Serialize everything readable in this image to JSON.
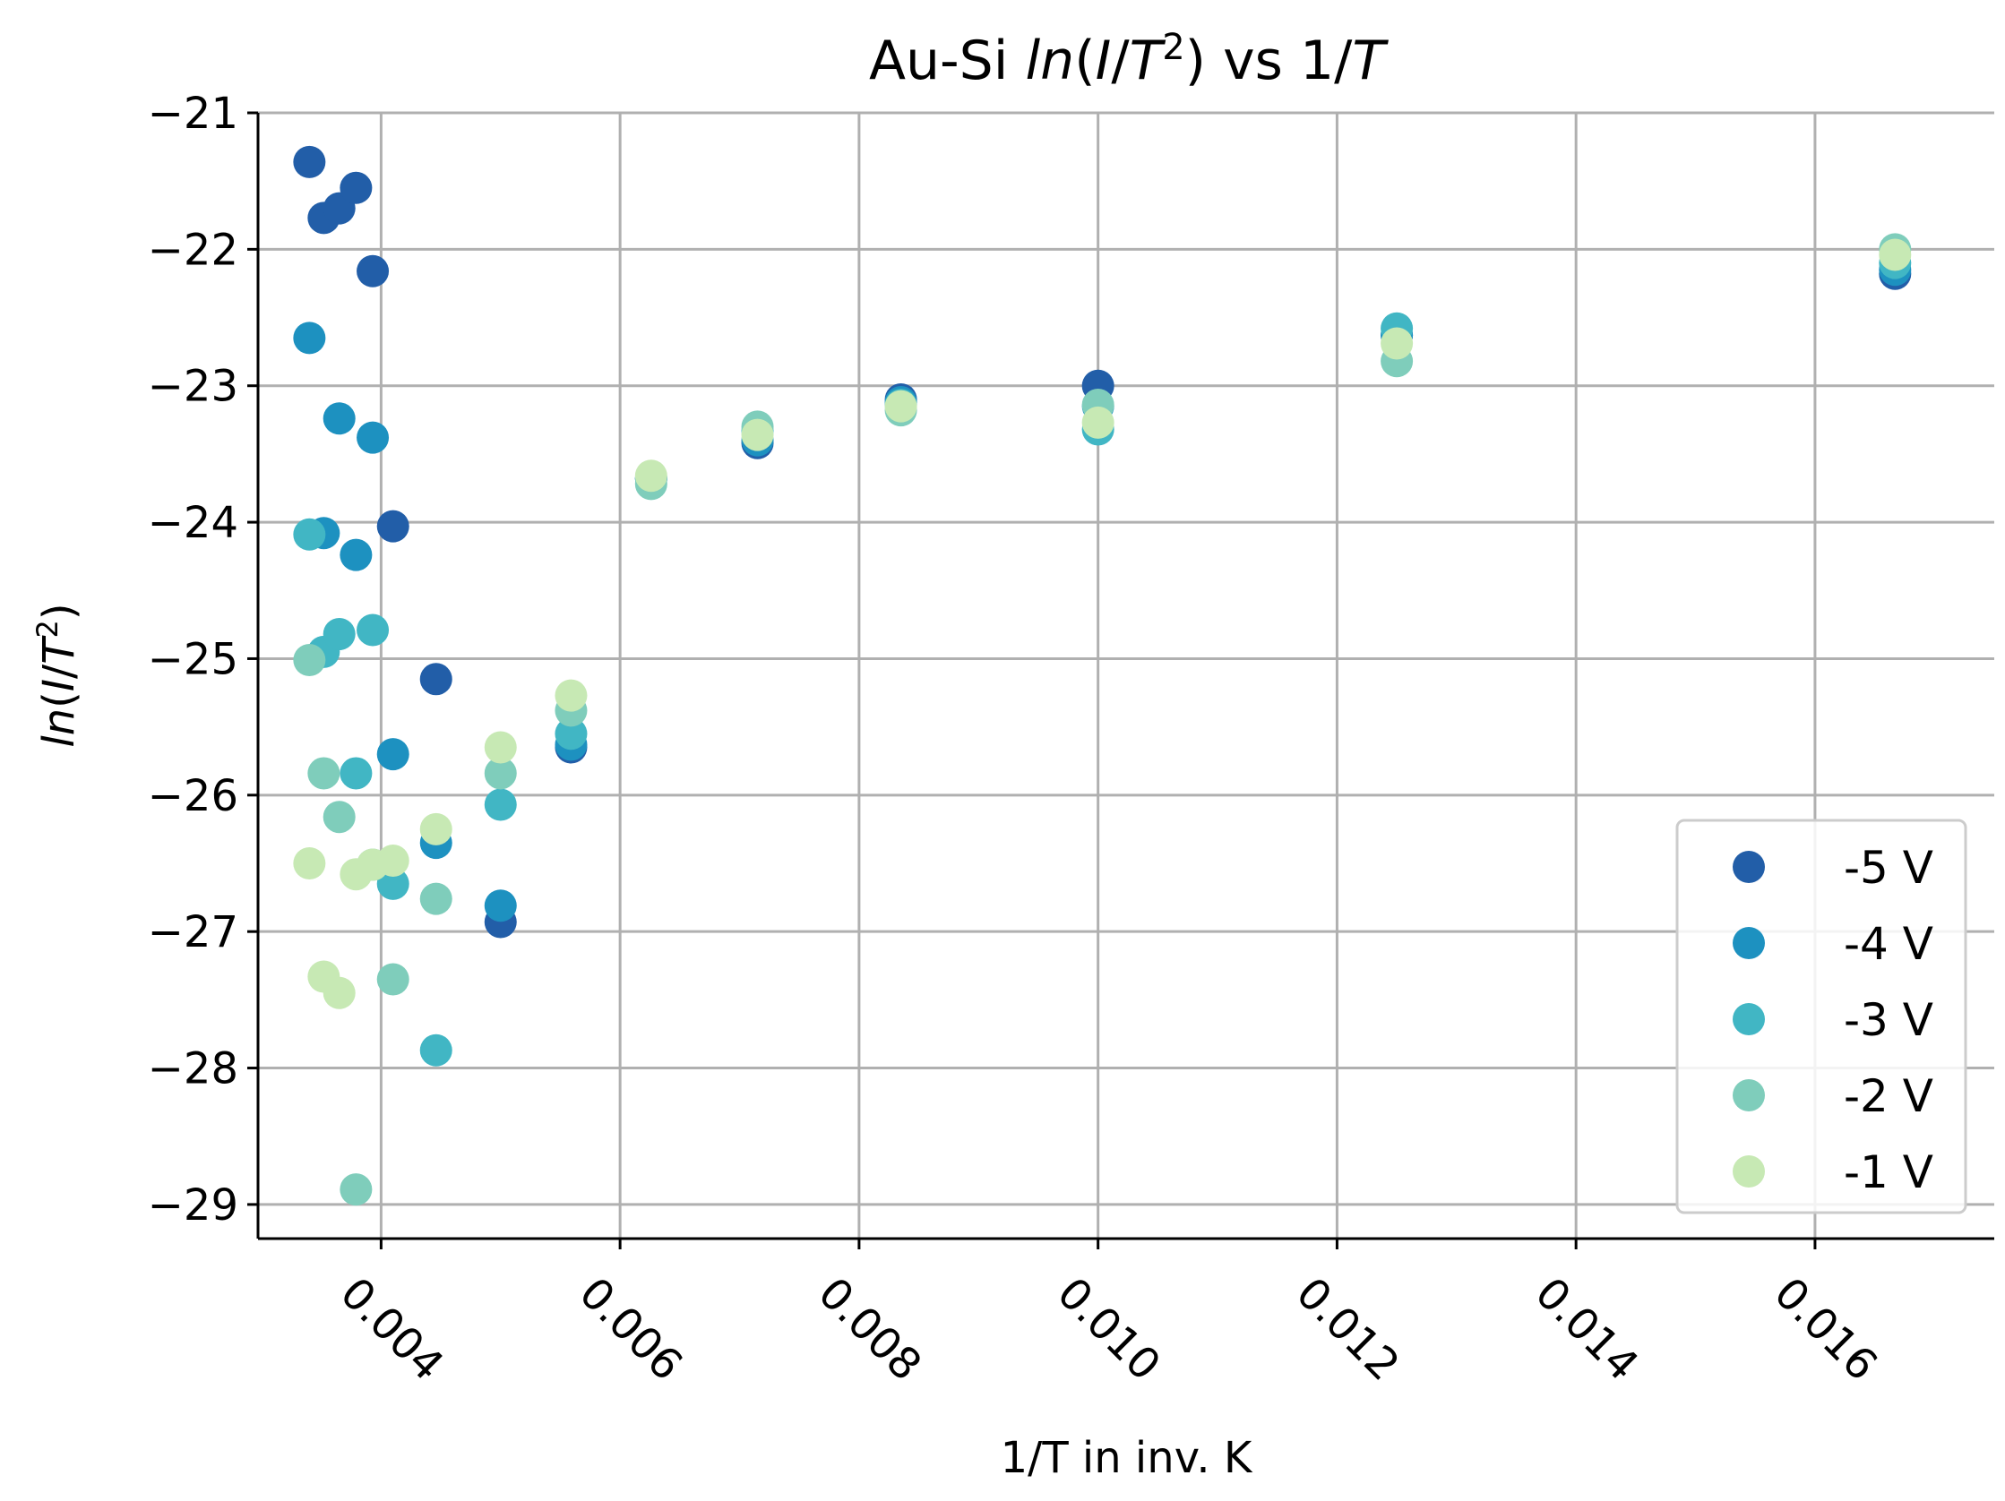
{
  "chart_data": {
    "type": "scatter",
    "title": {
      "prefix": "Au-Si ",
      "italic1": "ln",
      "mid1": "(",
      "italic2": "I",
      "mid2": "/",
      "italic3": "T",
      "sup": "2",
      "mid3": ") vs 1/",
      "italic4": "T"
    },
    "xlabel": "1/T in inv. K",
    "ylabel": {
      "italic1": "ln",
      "mid1": "(",
      "italic2": "I",
      "mid2": "/",
      "italic3": "T",
      "sup": "2",
      "mid3": ")"
    },
    "xlim": [
      0.00297,
      0.0175
    ],
    "ylim": [
      -29.25,
      -21.0
    ],
    "xticks": [
      0.004,
      0.006,
      0.008,
      0.01,
      0.012,
      0.014,
      0.016
    ],
    "xtick_labels": [
      "0.004",
      "0.006",
      "0.008",
      "0.010",
      "0.012",
      "0.014",
      "0.016"
    ],
    "yticks": [
      -21,
      -22,
      -23,
      -24,
      -25,
      -26,
      -27,
      -28,
      -29
    ],
    "ytick_labels": [
      "−21",
      "−22",
      "−23",
      "−24",
      "−25",
      "−26",
      "−27",
      "−28",
      "−29"
    ],
    "grid": true,
    "legend_position": "bottom-right",
    "series": [
      {
        "name": "-5 V",
        "color": "#225ea8",
        "x": [
          0.0034,
          0.00352,
          0.00365,
          0.00379,
          0.00393,
          0.0041,
          0.00446,
          0.005,
          0.00559,
          0.00626,
          0.00715,
          0.00835,
          0.01,
          0.0125,
          0.01667
        ],
        "y": [
          -21.36,
          -21.77,
          -21.7,
          -21.55,
          -22.16,
          -24.03,
          -25.15,
          -26.93,
          -25.65,
          -23.68,
          -23.42,
          -23.1,
          -23.0,
          -22.63,
          -22.18
        ]
      },
      {
        "name": "-4 V",
        "color": "#1d91c0",
        "x": [
          0.0034,
          0.00352,
          0.00365,
          0.00379,
          0.00393,
          0.0041,
          0.00446,
          0.005,
          0.00559,
          0.00626,
          0.00715,
          0.00835,
          0.01,
          0.0125,
          0.01667
        ],
        "y": [
          -22.65,
          -24.08,
          -23.24,
          -24.24,
          -23.38,
          -25.7,
          -26.35,
          -26.81,
          -25.63,
          -23.68,
          -23.4,
          -23.12,
          -23.15,
          -22.63,
          -22.15
        ]
      },
      {
        "name": "-3 V",
        "color": "#41b6c4",
        "x": [
          0.0034,
          0.00352,
          0.00365,
          0.00379,
          0.00393,
          0.0041,
          0.00446,
          0.005,
          0.00559,
          0.00626,
          0.00715,
          0.00835,
          0.01,
          0.0125,
          0.01667
        ],
        "y": [
          -24.09,
          -24.95,
          -24.82,
          -25.84,
          -24.79,
          -26.65,
          -27.87,
          -26.07,
          -25.55,
          -23.68,
          -23.33,
          -23.14,
          -23.32,
          -22.58,
          -22.1
        ]
      },
      {
        "name": "-2 V",
        "color": "#7fcdbb",
        "x": [
          0.0034,
          0.00352,
          0.00365,
          0.00379,
          0.00393,
          0.0041,
          0.00446,
          0.005,
          0.00559,
          0.00626,
          0.00715,
          0.00835,
          0.01,
          0.0125,
          0.01667
        ],
        "y": [
          -25.01,
          -25.84,
          -26.16,
          -28.89,
          -26.51,
          -27.35,
          -26.76,
          -25.84,
          -25.38,
          -23.72,
          -23.3,
          -23.18,
          -23.14,
          -22.82,
          -22.0
        ]
      },
      {
        "name": "-1 V",
        "color": "#c7e9b4",
        "x": [
          0.0034,
          0.00352,
          0.00365,
          0.00379,
          0.00393,
          0.0041,
          0.00446,
          0.005,
          0.00559,
          0.00626,
          0.00715,
          0.00835,
          0.01,
          0.0125,
          0.01667
        ],
        "y": [
          -26.5,
          -27.33,
          -27.45,
          -26.58,
          -26.51,
          -26.48,
          -26.25,
          -25.65,
          -25.27,
          -23.66,
          -23.36,
          -23.15,
          -23.27,
          -22.69,
          -22.04
        ]
      }
    ]
  }
}
